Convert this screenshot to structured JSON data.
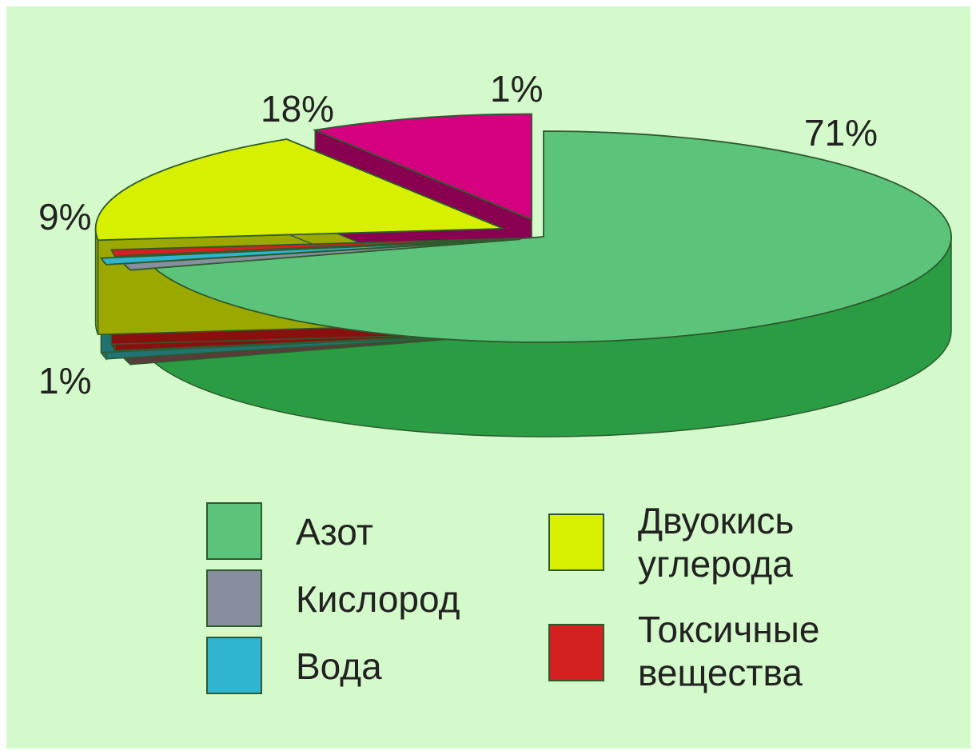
{
  "chart_data": {
    "type": "pie",
    "style": "3d-exploded",
    "slices": [
      {
        "name": "Азот",
        "value": 71,
        "label": "71%",
        "color": "#5cc47a",
        "side_color": "#2a9c43"
      },
      {
        "name": "Кислород",
        "value": 1,
        "label": "1%",
        "color": "#878f9e",
        "side_color": "#5a3a3a"
      },
      {
        "name": "Вода",
        "value": 1,
        "label": "1%",
        "color": "#2fb5cf",
        "side_color": "#1f7373"
      },
      {
        "name": "Токсичные вещества",
        "value": 1,
        "label": "1%",
        "color": "#d42020",
        "side_color": "#8a1010"
      },
      {
        "name": "Двуокись углерода",
        "value": 18,
        "label": "18%",
        "color": "#d6f000",
        "side_color": "#9aa800"
      },
      {
        "name": "",
        "value": 9,
        "label": "9%",
        "color": "#d4007f",
        "side_color": "#8a0050"
      }
    ],
    "legend": {
      "placement": "bottom",
      "items": [
        {
          "lines": [
            "Азот"
          ],
          "color": "#5cc47a"
        },
        {
          "lines": [
            "Кислород"
          ],
          "color": "#878f9e"
        },
        {
          "lines": [
            "Вода"
          ],
          "color": "#2fb5cf"
        },
        {
          "lines": [
            "Двуокись",
            "углерода"
          ],
          "color": "#d6f000"
        },
        {
          "lines": [
            "Токсичные",
            "вещества"
          ],
          "color": "#d42020"
        }
      ]
    }
  },
  "colors": {
    "background": "#d4f9ca",
    "outline": "#2e5a2e",
    "text": "#222222"
  }
}
